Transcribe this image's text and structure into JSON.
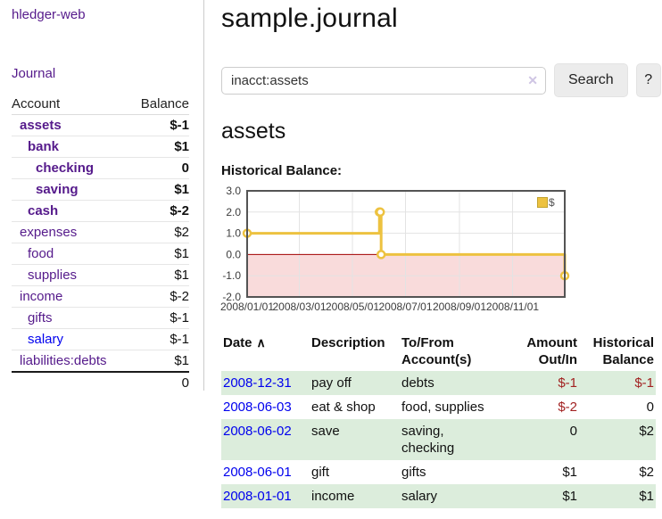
{
  "app": {
    "title": "hledger-web"
  },
  "sidebar": {
    "journal_label": "Journal",
    "accounts": {
      "header_account": "Account",
      "header_balance": "Balance",
      "rows": [
        {
          "name": "assets",
          "balance": "$-1",
          "indent": 1,
          "bold": true,
          "style": "neg-strong"
        },
        {
          "name": "bank",
          "balance": "$1",
          "indent": 2,
          "bold": true,
          "style": "plain"
        },
        {
          "name": "checking",
          "balance": "0",
          "indent": 3,
          "bold": true,
          "style": "plain"
        },
        {
          "name": "saving",
          "balance": "$1",
          "indent": 3,
          "bold": true,
          "style": "plain"
        },
        {
          "name": "cash",
          "balance": "$-2",
          "indent": 2,
          "bold": true,
          "style": "neg-strong"
        },
        {
          "name": "expenses",
          "balance": "$2",
          "indent": 1,
          "bold": false,
          "style": "plain"
        },
        {
          "name": "food",
          "balance": "$1",
          "indent": 2,
          "bold": false,
          "style": "plain"
        },
        {
          "name": "supplies",
          "balance": "$1",
          "indent": 2,
          "bold": false,
          "style": "plain"
        },
        {
          "name": "income",
          "balance": "$-2",
          "indent": 1,
          "bold": false,
          "style": "neg-muted"
        },
        {
          "name": "gifts",
          "balance": "$-1",
          "indent": 2,
          "bold": false,
          "style": "neg-muted"
        },
        {
          "name": "salary",
          "balance": "$-1",
          "indent": 2,
          "bold": false,
          "style": "neg-muted",
          "link": "blue"
        },
        {
          "name": "liabilities:debts",
          "balance": "$1",
          "indent": 1,
          "bold": false,
          "style": "plain"
        }
      ],
      "total": "0"
    }
  },
  "main": {
    "title": "sample.journal",
    "search": {
      "value": "inacct:assets",
      "clear_icon": "✕",
      "button_label": "Search",
      "help_label": "?"
    },
    "account_heading": "assets",
    "chart_label": "Historical Balance:",
    "register": {
      "headers": {
        "date": "Date",
        "sort_icon": "∧",
        "description": "Description",
        "accounts": "To/From Account(s)",
        "amount": "Amount Out/In",
        "balance": "Historical Balance"
      },
      "rows": [
        {
          "date": "2008-12-31",
          "description": "pay off",
          "accounts": "debts",
          "amount": "$-1",
          "balance": "$-1"
        },
        {
          "date": "2008-06-03",
          "description": "eat & shop",
          "accounts": "food, supplies",
          "amount": "$-2",
          "balance": "0"
        },
        {
          "date": "2008-06-02",
          "description": "save",
          "accounts": "saving, checking",
          "amount": "0",
          "balance": "$2"
        },
        {
          "date": "2008-06-01",
          "description": "gift",
          "accounts": "gifts",
          "amount": "$1",
          "balance": "$2"
        },
        {
          "date": "2008-01-01",
          "description": "income",
          "accounts": "salary",
          "amount": "$1",
          "balance": "$1"
        }
      ]
    }
  },
  "chart_data": {
    "type": "line",
    "step": true,
    "title": "Historical Balance:",
    "series": [
      {
        "name": "$",
        "x": [
          "2008-01-01",
          "2008-06-01",
          "2008-06-02",
          "2008-06-03",
          "2008-12-31"
        ],
        "y": [
          1,
          2,
          2,
          0,
          -1
        ],
        "color": "#edc240"
      }
    ],
    "xrange": [
      "2008-01-01",
      "2008-12-31"
    ],
    "ylim": [
      -2,
      3
    ],
    "ytick_labels": [
      "3.0",
      "2.0",
      "1.0",
      "0.0",
      "-1.0",
      "-2.0"
    ],
    "xtick_labels": [
      "2008/01/01",
      "2008/03/01",
      "2008/05/01",
      "2008/07/01",
      "2008/09/01",
      "2008/11/01"
    ],
    "legend": {
      "label": "$",
      "position": "top-right"
    },
    "grid": true,
    "colors": {
      "negative_region": "#f9dbdb",
      "zero_line": "#a40000",
      "grid": "#e3e3e3",
      "border": "#545454",
      "tick_text": "#3c3c3c"
    }
  }
}
